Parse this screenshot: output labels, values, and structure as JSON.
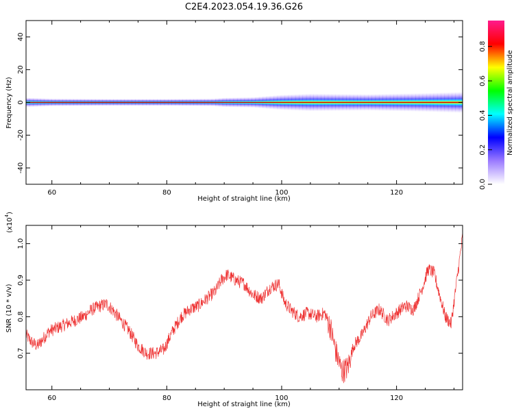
{
  "title": "C2E4.2023.054.19.36.G26",
  "chart_data": [
    {
      "type": "heatmap",
      "xlabel": "Height of straight line (km)",
      "ylabel": "Frequency (Hz)",
      "xlim": [
        55.5,
        131.5
      ],
      "ylim": [
        -50,
        50
      ],
      "xticks": [
        60,
        80,
        100,
        120
      ],
      "yticks": [
        -40,
        -20,
        0,
        20,
        40
      ],
      "yticklabels": [
        "-40",
        "-20",
        "0",
        "20",
        "40"
      ],
      "description_values": {
        "peak_frequency_hz": 0,
        "spread_profile": {
          "x": [
            56,
            60,
            70,
            80,
            88,
            90,
            95,
            100,
            105,
            110,
            115,
            120,
            125,
            128,
            131.5
          ],
          "half_width_hz": [
            1.6,
            1.3,
            1.2,
            1.2,
            1.3,
            1.6,
            1.8,
            2.6,
            3.0,
            2.9,
            2.8,
            3.0,
            3.2,
            3.4,
            3.6
          ]
        }
      },
      "colorbar": {
        "label": "Normalized spectral amplitude",
        "range": [
          0.0,
          0.95
        ],
        "ticks": [
          0.0,
          0.2,
          0.4,
          0.6,
          0.8
        ],
        "ticklabels": [
          "0.0",
          "0.2",
          "0.4",
          "0.6",
          "0.8"
        ],
        "colormap": [
          "#ffffff",
          "#9b7bff",
          "#0000ff",
          "#00ffff",
          "#00ff00",
          "#ffff00",
          "#ff0000",
          "#ff1a8c"
        ]
      },
      "grid": false
    },
    {
      "type": "line",
      "xlabel": "Height of straight line (km)",
      "ylabel": "SNR (10 * v/v)",
      "scale_label": "(x10",
      "scale_exp": "4",
      "scale_close": ")",
      "xlim": [
        55.5,
        131.5
      ],
      "ylim": [
        0.6,
        1.05
      ],
      "xticks": [
        60,
        80,
        100,
        120
      ],
      "yticks": [
        0.7,
        0.8,
        0.9,
        1.0
      ],
      "yticklabels": [
        "0.7",
        "0.8",
        "0.9",
        "1.0"
      ],
      "grid": false,
      "series": [
        {
          "color": "#ee3333",
          "x": [
            55.5,
            56.5,
            57.5,
            58.5,
            59.5,
            61,
            62.5,
            64,
            65.5,
            67,
            68.5,
            69.5,
            70.5,
            72,
            73.5,
            75,
            76.5,
            78,
            79.5,
            81,
            82.5,
            84,
            85.5,
            87,
            88.5,
            89.5,
            90.5,
            92,
            93.5,
            95,
            96.5,
            98,
            99.5,
            100.5,
            101.5,
            103,
            104.5,
            106,
            107.5,
            108.5,
            109.5,
            110.5,
            111.5,
            112.5,
            114,
            115.5,
            117,
            118.5,
            120,
            121.5,
            123,
            124.5,
            125.5,
            126.5,
            127.5,
            128.5,
            129.5,
            130.5,
            131.5
          ],
          "y": [
            0.75,
            0.73,
            0.72,
            0.74,
            0.76,
            0.77,
            0.78,
            0.79,
            0.8,
            0.82,
            0.83,
            0.835,
            0.82,
            0.79,
            0.76,
            0.72,
            0.7,
            0.7,
            0.71,
            0.76,
            0.8,
            0.82,
            0.83,
            0.85,
            0.87,
            0.9,
            0.915,
            0.9,
            0.89,
            0.86,
            0.85,
            0.88,
            0.89,
            0.84,
            0.82,
            0.8,
            0.81,
            0.8,
            0.81,
            0.77,
            0.7,
            0.65,
            0.66,
            0.72,
            0.75,
            0.8,
            0.82,
            0.79,
            0.81,
            0.83,
            0.82,
            0.88,
            0.93,
            0.92,
            0.86,
            0.8,
            0.78,
            0.9,
            1.02
          ]
        }
      ]
    }
  ]
}
